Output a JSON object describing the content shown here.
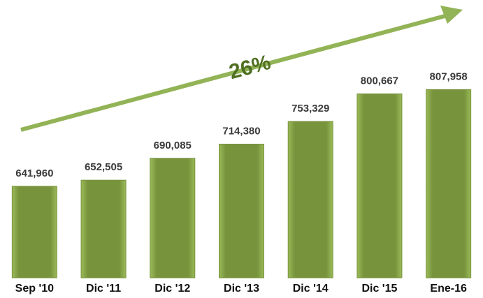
{
  "chart_data": {
    "type": "bar",
    "annotation": "26%",
    "categories": [
      "Sep '10",
      "Dic '11",
      "Dic '12",
      "Dic '13",
      "Dic '14",
      "Dic '15",
      "Ene-16"
    ],
    "values": [
      641960,
      652505,
      690085,
      714380,
      753329,
      800667,
      807958
    ],
    "value_labels": [
      "641,960",
      "652,505",
      "690,085",
      "714,380",
      "753,329",
      "800,667",
      "807,958"
    ],
    "color": "#77933c",
    "ylim": [
      485000,
      830000
    ]
  }
}
